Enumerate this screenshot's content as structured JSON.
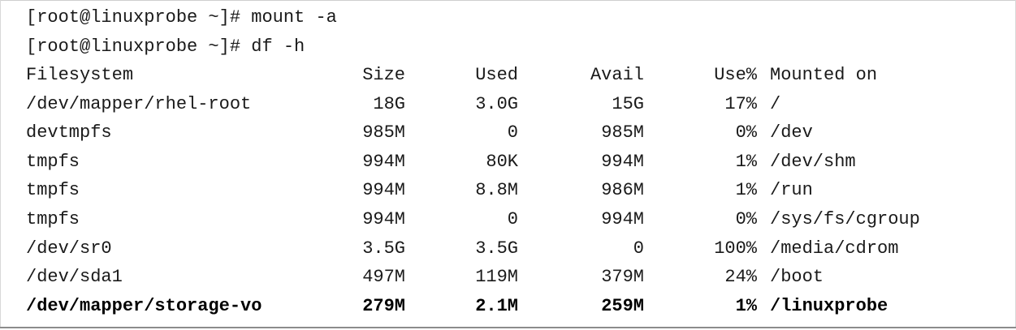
{
  "terminal": {
    "commands": [
      "[root@linuxprobe ~]# mount -a",
      "[root@linuxprobe ~]# df -h"
    ],
    "table": {
      "headers": {
        "filesystem": "Filesystem",
        "size": "Size",
        "used": "Used",
        "avail": "Avail",
        "use_pct": "Use%",
        "mounted_on": "Mounted on"
      },
      "rows": [
        {
          "filesystem": "/dev/mapper/rhel-root",
          "size": "18G",
          "used": "3.0G",
          "avail": "15G",
          "use_pct": "17%",
          "mounted_on": "/"
        },
        {
          "filesystem": "devtmpfs",
          "size": "985M",
          "used": "0",
          "avail": "985M",
          "use_pct": "0%",
          "mounted_on": "/dev"
        },
        {
          "filesystem": "tmpfs",
          "size": "994M",
          "used": "80K",
          "avail": "994M",
          "use_pct": "1%",
          "mounted_on": "/dev/shm"
        },
        {
          "filesystem": "tmpfs",
          "size": "994M",
          "used": "8.8M",
          "avail": "986M",
          "use_pct": "1%",
          "mounted_on": "/run"
        },
        {
          "filesystem": "tmpfs",
          "size": "994M",
          "used": "0",
          "avail": "994M",
          "use_pct": "0%",
          "mounted_on": "/sys/fs/cgroup"
        },
        {
          "filesystem": "/dev/sr0",
          "size": "3.5G",
          "used": "3.5G",
          "avail": "0",
          "use_pct": "100%",
          "mounted_on": "/media/cdrom"
        },
        {
          "filesystem": "/dev/sda1",
          "size": "497M",
          "used": "119M",
          "avail": "379M",
          "use_pct": "24%",
          "mounted_on": "/boot"
        },
        {
          "filesystem": "/dev/mapper/storage-vo",
          "size": "279M",
          "used": "2.1M",
          "avail": "259M",
          "use_pct": "1%",
          "mounted_on": "/linuxprobe",
          "bold": true
        }
      ]
    }
  }
}
